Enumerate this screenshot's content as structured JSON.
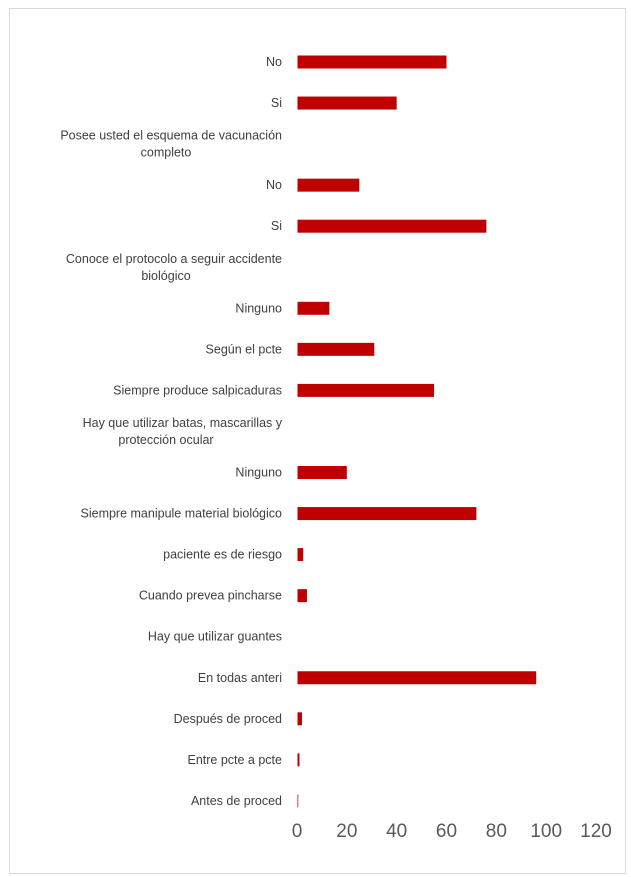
{
  "chart_data": {
    "type": "bar",
    "orientation": "horizontal",
    "bar_color": "#c00000",
    "grid": false,
    "xlim": [
      0,
      120
    ],
    "x_ticks": [
      0,
      20,
      40,
      60,
      80,
      100,
      120
    ],
    "categories": [
      [
        "No"
      ],
      [
        "Si"
      ],
      [
        "Posee usted el esquema de vacunación",
        "completo"
      ],
      [
        "No"
      ],
      [
        "Si"
      ],
      [
        "Conoce el protocolo a seguir accidente",
        "biológico"
      ],
      [
        "Ninguno"
      ],
      [
        "Según el pcte"
      ],
      [
        "Siempre produce salpicaduras"
      ],
      [
        "Hay que utilizar batas, mascarillas y",
        "protección ocular"
      ],
      [
        "Ninguno"
      ],
      [
        "Siempre manipule material biológico"
      ],
      [
        "paciente es de riesgo"
      ],
      [
        "Cuando prevea pincharse"
      ],
      [
        "Hay que utilizar guantes"
      ],
      [
        "En todas anteri"
      ],
      [
        "Después de proced"
      ],
      [
        "Entre pcte a pcte"
      ],
      [
        "Antes de proced"
      ]
    ],
    "values": [
      60,
      40,
      0,
      25,
      76,
      0,
      13,
      31,
      55,
      0,
      20,
      72,
      2.5,
      4,
      0,
      96,
      2,
      1,
      0.5
    ]
  }
}
